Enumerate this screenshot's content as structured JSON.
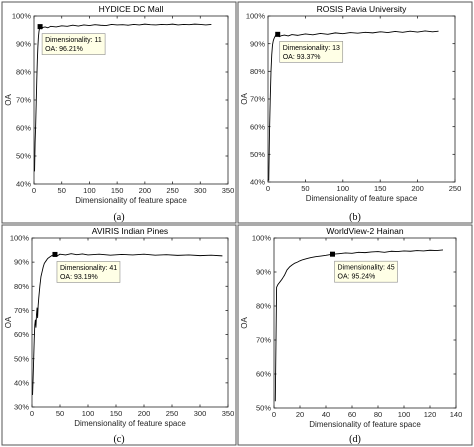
{
  "chart_data": [
    {
      "type": "line",
      "title": "HYDICE DC Mall",
      "xlabel": "Dimensionality of feature space",
      "ylabel": "OA",
      "xlim": [
        0,
        350
      ],
      "ylim": [
        40,
        100
      ],
      "xticks": [
        0,
        50,
        100,
        150,
        200,
        250,
        300,
        350
      ],
      "yticks": [
        40,
        50,
        60,
        70,
        80,
        90,
        100
      ],
      "ytick_suffix": "%",
      "grid": false,
      "caption": "(a)",
      "annotation": {
        "x": 11,
        "y": 96.21,
        "text1": "Dimensionality: 11",
        "text2": "OA: 96.21%"
      },
      "x": [
        1,
        2,
        3,
        4,
        5,
        6,
        7,
        8,
        9,
        10,
        11,
        13,
        16,
        20,
        25,
        30,
        40,
        50,
        60,
        70,
        80,
        90,
        100,
        110,
        120,
        130,
        140,
        150,
        160,
        170,
        180,
        190,
        200,
        210,
        220,
        230,
        240,
        250,
        260,
        270,
        280,
        290,
        300,
        310,
        320
      ],
      "y": [
        44.5,
        55,
        61,
        69,
        77,
        84,
        89,
        92.5,
        94.5,
        95.6,
        96.21,
        95.4,
        95.9,
        96.1,
        95.8,
        96.3,
        96.1,
        96.5,
        96.3,
        96.7,
        96.4,
        96.8,
        96.6,
        96.9,
        96.7,
        96.6,
        97.0,
        96.8,
        96.9,
        96.7,
        97.0,
        96.8,
        97.1,
        96.9,
        96.8,
        97.0,
        96.9,
        97.1,
        96.8,
        97.0,
        96.9,
        97.1,
        97.0,
        96.8,
        97.0
      ]
    },
    {
      "type": "line",
      "title": "ROSIS Pavia University",
      "xlabel": "Dimensionality of feature space",
      "ylabel": "OA",
      "xlim": [
        0,
        250
      ],
      "ylim": [
        40,
        100
      ],
      "xticks": [
        0,
        50,
        100,
        150,
        200,
        250
      ],
      "yticks": [
        40,
        50,
        60,
        70,
        80,
        90,
        100
      ],
      "ytick_suffix": "%",
      "grid": false,
      "caption": "(b)",
      "annotation": {
        "x": 13,
        "y": 93.37,
        "text1": "Dimensionality: 13",
        "text2": "OA: 93.37%"
      },
      "x": [
        1,
        2,
        3,
        4,
        5,
        6,
        7,
        8,
        9,
        10,
        11,
        12,
        13,
        15,
        18,
        22,
        27,
        32,
        40,
        50,
        60,
        70,
        80,
        90,
        100,
        110,
        120,
        130,
        140,
        150,
        160,
        170,
        180,
        190,
        200,
        210,
        220,
        228
      ],
      "y": [
        40.5,
        58,
        70,
        80,
        86,
        89.5,
        91,
        91.8,
        92.4,
        92.9,
        93.1,
        93.2,
        93.37,
        92.5,
        92.9,
        93.1,
        92.8,
        93.3,
        93.0,
        93.5,
        93.2,
        93.7,
        93.4,
        93.9,
        93.6,
        94.0,
        93.8,
        94.1,
        93.9,
        94.3,
        94.0,
        94.4,
        94.1,
        94.5,
        94.2,
        94.6,
        94.3,
        94.5
      ]
    },
    {
      "type": "line",
      "title": "AVIRIS Indian Pines",
      "xlabel": "Dimensionality of feature space",
      "ylabel": "OA",
      "xlim": [
        0,
        350
      ],
      "ylim": [
        30,
        100
      ],
      "xticks": [
        0,
        50,
        100,
        150,
        200,
        250,
        300,
        350
      ],
      "yticks": [
        30,
        40,
        50,
        60,
        70,
        80,
        90,
        100
      ],
      "ytick_suffix": "%",
      "grid": false,
      "caption": "(c)",
      "annotation": {
        "x": 41,
        "y": 93.19,
        "text1": "Dimensionality: 41",
        "text2": "OA: 93.19%"
      },
      "x": [
        1,
        2,
        3,
        4,
        5,
        6,
        7,
        8,
        9,
        10,
        11,
        12,
        14,
        16,
        18,
        20,
        22,
        25,
        28,
        32,
        36,
        41,
        45,
        50,
        60,
        70,
        80,
        90,
        100,
        120,
        140,
        160,
        180,
        200,
        220,
        240,
        260,
        280,
        300,
        320,
        340
      ],
      "y": [
        35,
        42,
        50,
        58,
        64,
        66,
        63,
        68,
        71,
        67,
        72,
        75,
        80,
        84,
        86,
        88,
        89.5,
        90.5,
        91.5,
        92.2,
        92.8,
        93.19,
        92.6,
        93.3,
        93.0,
        93.5,
        93.1,
        93.4,
        93.0,
        93.3,
        92.9,
        93.2,
        93.0,
        93.3,
        92.9,
        93.1,
        92.8,
        93.0,
        92.7,
        92.9,
        92.6
      ]
    },
    {
      "type": "line",
      "title": "WorldView-2 Hainan",
      "xlabel": "Dimensionality of feature space",
      "ylabel": "OA",
      "xlim": [
        0,
        140
      ],
      "ylim": [
        50,
        100
      ],
      "xticks": [
        0,
        20,
        40,
        60,
        80,
        100,
        120,
        140
      ],
      "yticks": [
        50,
        60,
        70,
        80,
        90,
        100
      ],
      "ytick_suffix": "%",
      "grid": false,
      "caption": "(d)",
      "annotation": {
        "x": 45,
        "y": 95.24,
        "text1": "Dimensionality: 45",
        "text2": "OA: 95.24%"
      },
      "x": [
        1,
        2,
        3,
        4,
        5,
        6,
        7,
        8,
        9,
        10,
        12,
        14,
        16,
        18,
        20,
        22,
        25,
        28,
        32,
        36,
        40,
        45,
        50,
        55,
        60,
        65,
        70,
        75,
        80,
        85,
        90,
        95,
        100,
        105,
        110,
        115,
        120,
        125,
        130
      ],
      "y": [
        52,
        85.5,
        86.3,
        86.8,
        87.3,
        87.8,
        88.4,
        89,
        89.8,
        90.6,
        91.5,
        92.1,
        92.6,
        92.9,
        93.3,
        93.6,
        93.9,
        94.2,
        94.5,
        94.7,
        94.9,
        95.24,
        95.4,
        95.6,
        95.5,
        95.8,
        95.7,
        95.9,
        96.0,
        95.8,
        96.1,
        96.0,
        96.2,
        96.1,
        96.3,
        96.2,
        96.4,
        96.3,
        96.5
      ]
    }
  ]
}
